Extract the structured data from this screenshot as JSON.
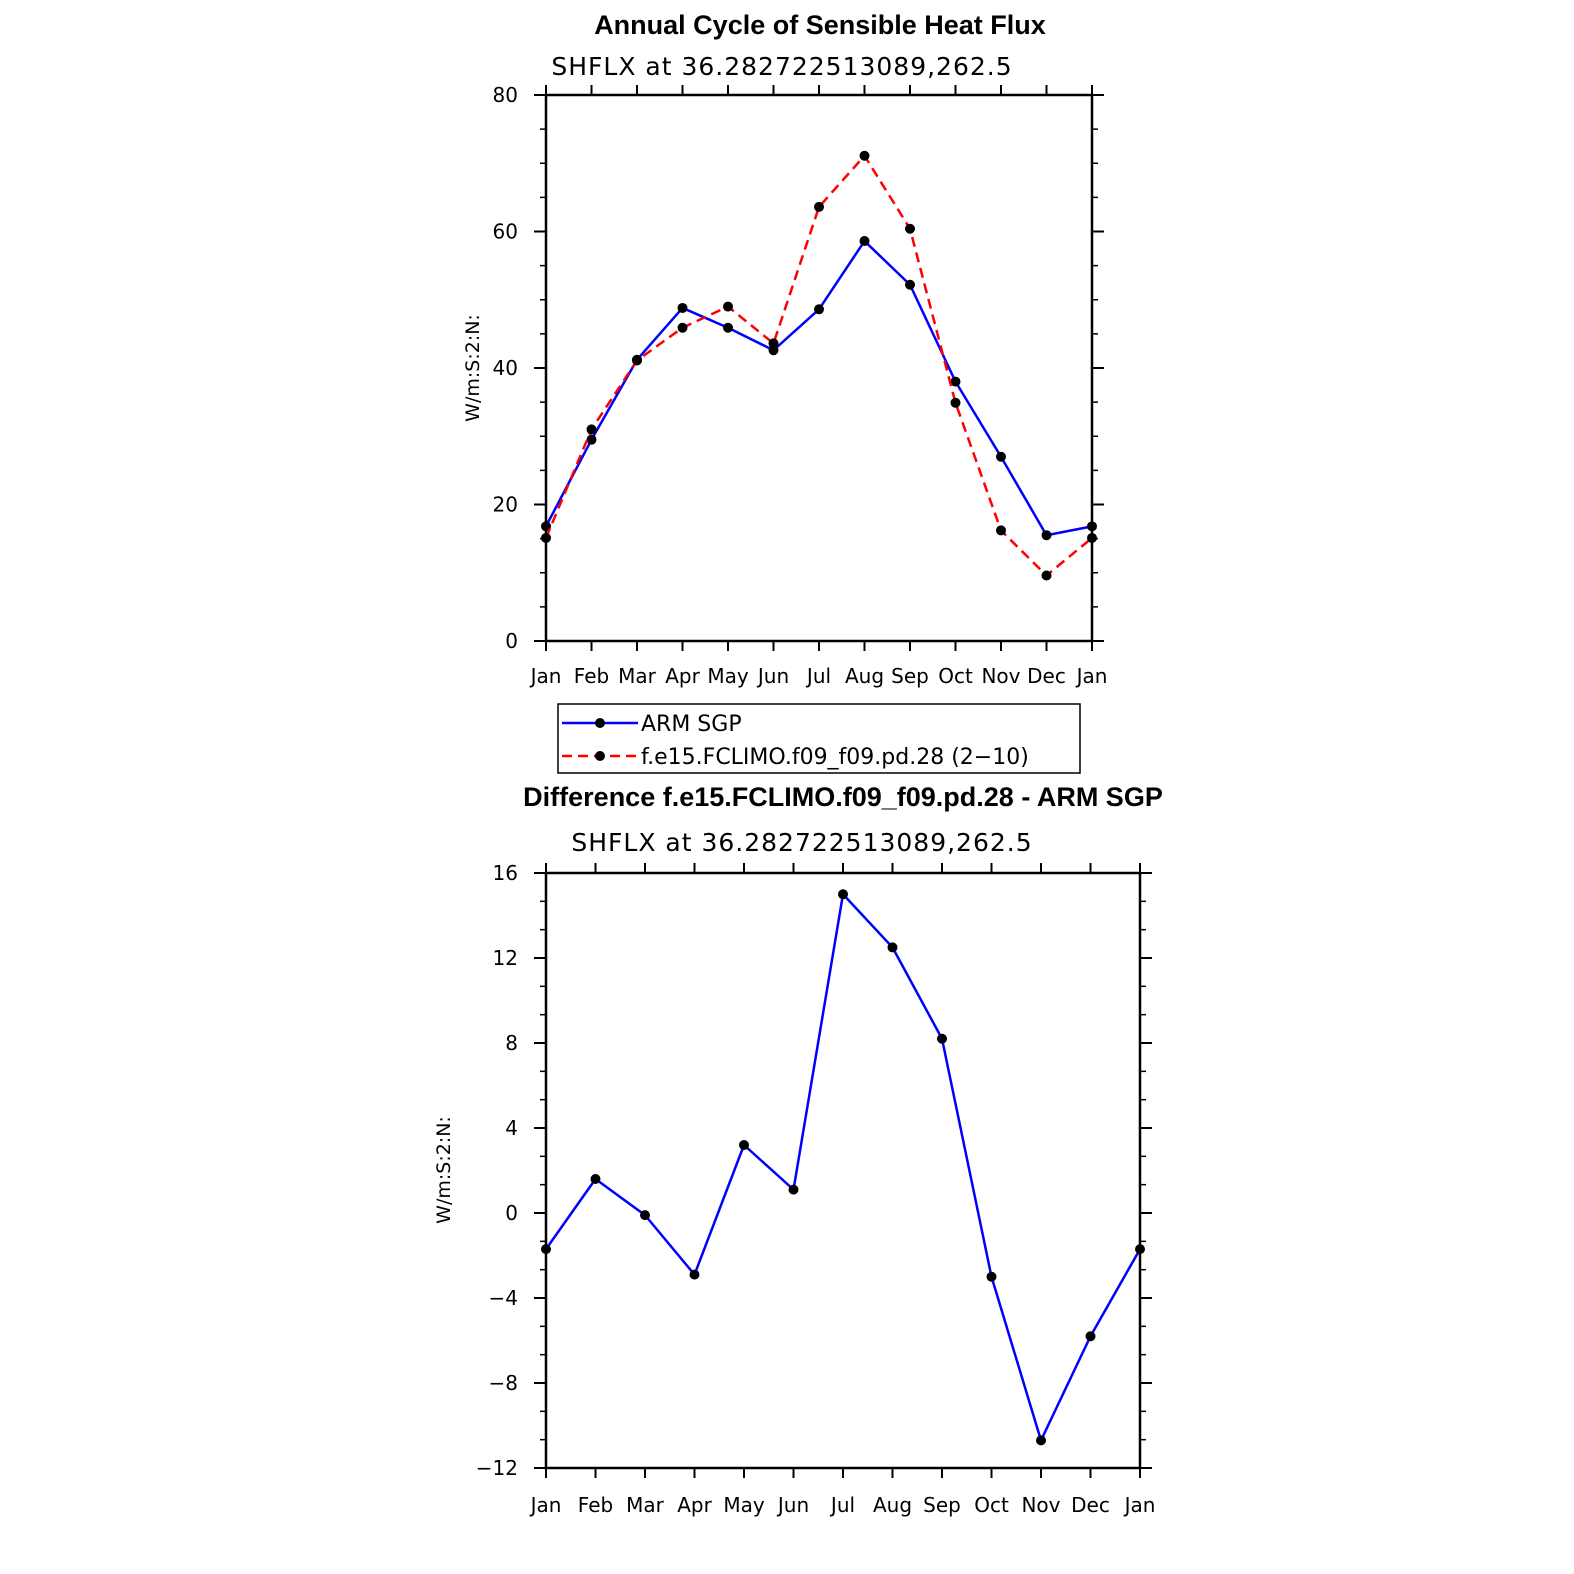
{
  "chart_data": [
    {
      "type": "line",
      "title": "Annual Cycle of Sensible Heat Flux",
      "subtitle": "SHFLX at 36.282722513089,262.5",
      "xlabel": "",
      "ylabel": "W/m:S:2:N:",
      "categories": [
        "Jan",
        "Feb",
        "Mar",
        "Apr",
        "May",
        "Jun",
        "Jul",
        "Aug",
        "Sep",
        "Oct",
        "Nov",
        "Dec",
        "Jan"
      ],
      "ylim": [
        0,
        80
      ],
      "yticks": [
        0,
        20,
        40,
        60,
        80
      ],
      "series": [
        {
          "name": "ARM SGP",
          "color": "#0000ff",
          "dash": "solid",
          "values": [
            16.8,
            29.5,
            41.2,
            48.8,
            45.9,
            42.6,
            48.6,
            58.6,
            52.2,
            38.0,
            27.0,
            15.5,
            16.8
          ]
        },
        {
          "name": "f.e15.FCLIMO.f09_f09.pd.28 (2−10)",
          "color": "#ff0000",
          "dash": "dashed",
          "values": [
            15.1,
            31.0,
            41.1,
            45.9,
            49.0,
            43.6,
            63.6,
            71.1,
            60.4,
            34.9,
            16.2,
            9.6,
            15.1
          ]
        }
      ],
      "legend": "below"
    },
    {
      "type": "line",
      "title": "Difference f.e15.FCLIMO.f09_f09.pd.28 - ARM SGP",
      "subtitle": "SHFLX at 36.282722513089,262.5",
      "xlabel": "",
      "ylabel": "W/m:S:2:N:",
      "categories": [
        "Jan",
        "Feb",
        "Mar",
        "Apr",
        "May",
        "Jun",
        "Jul",
        "Aug",
        "Sep",
        "Oct",
        "Nov",
        "Dec",
        "Jan"
      ],
      "ylim": [
        -12,
        16
      ],
      "yticks": [
        "−12",
        "−8",
        "−4",
        "0",
        "4",
        "8",
        "12",
        "16"
      ],
      "ytick_values": [
        -12,
        -8,
        -4,
        0,
        4,
        8,
        12,
        16
      ],
      "series": [
        {
          "name": "Difference",
          "color": "#0000ff",
          "dash": "solid",
          "values": [
            -1.7,
            1.6,
            -0.1,
            -2.9,
            3.2,
            1.1,
            15.0,
            12.5,
            8.2,
            -3.0,
            -10.7,
            -5.8,
            -1.7
          ]
        }
      ]
    }
  ]
}
